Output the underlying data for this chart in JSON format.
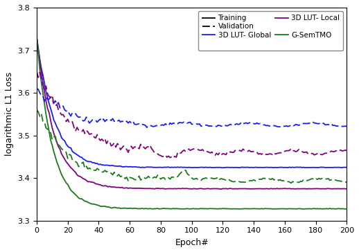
{
  "title": "",
  "xlabel": "Epoch#",
  "ylabel": "logarithmic L1 Loss",
  "xlim": [
    0,
    200
  ],
  "ylim": [
    3.3,
    3.8
  ],
  "yticks": [
    3.3,
    3.4,
    3.5,
    3.6,
    3.7,
    3.8
  ],
  "xticks": [
    0,
    20,
    40,
    60,
    80,
    100,
    120,
    140,
    160,
    180,
    200
  ],
  "colors": {
    "blue": "#1a1aff",
    "purple": "#800080",
    "green": "#1a7a1a"
  },
  "figsize": [
    5.18,
    3.64
  ],
  "dpi": 100,
  "curve_endpoints": {
    "global_train_end": 3.425,
    "global_val_end": 3.525,
    "local_train_end": 3.375,
    "local_val_end": 3.46,
    "gsem_train_end": 3.328,
    "gsem_val_end": 3.395
  }
}
